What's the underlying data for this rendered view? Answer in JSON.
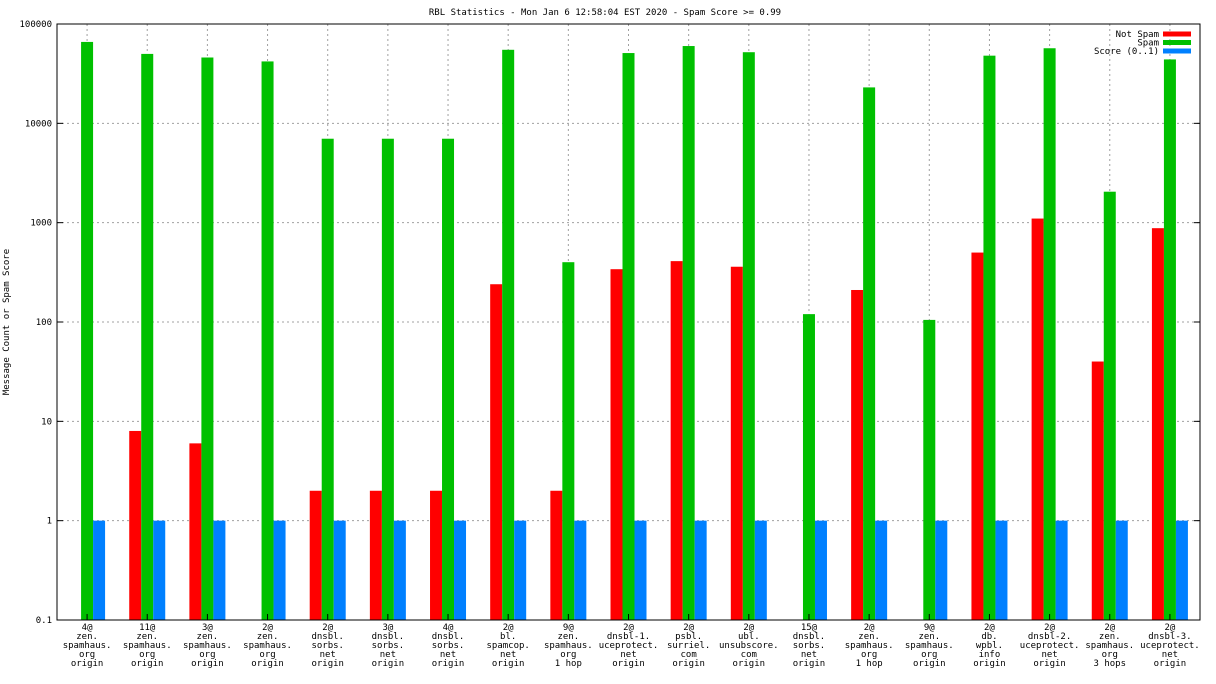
{
  "chart_data": {
    "type": "bar",
    "title": "RBL Statistics - Mon Jan  6 12:58:04 EST 2020 - Spam Score >= 0.99",
    "ylabel": "Message Count or Spam Score",
    "xlabel": "",
    "y_scale": "log",
    "ylim": [
      0.1,
      100000
    ],
    "y_ticks": [
      "0.1",
      "1",
      "10",
      "100",
      "1000",
      "10000",
      "100000"
    ],
    "legend_position": "top-right",
    "grid": true,
    "categories": [
      [
        "4@",
        "zen.",
        "spamhaus.",
        "org",
        "origin"
      ],
      [
        "11@",
        "zen.",
        "spamhaus.",
        "org",
        "origin"
      ],
      [
        "3@",
        "zen.",
        "spamhaus.",
        "org",
        "origin"
      ],
      [
        "2@",
        "zen.",
        "spamhaus.",
        "org",
        "origin"
      ],
      [
        "2@",
        "dnsbl.",
        "sorbs.",
        "net",
        "origin"
      ],
      [
        "3@",
        "dnsbl.",
        "sorbs.",
        "net",
        "origin"
      ],
      [
        "4@",
        "dnsbl.",
        "sorbs.",
        "net",
        "origin"
      ],
      [
        "2@",
        "bl.",
        "spamcop.",
        "net",
        "origin"
      ],
      [
        "9@",
        "zen.",
        "spamhaus.",
        "org",
        "1 hop"
      ],
      [
        "2@",
        "dnsbl-1.",
        "uceprotect.",
        "net",
        "origin"
      ],
      [
        "2@",
        "psbl.",
        "surriel.",
        "com",
        "origin"
      ],
      [
        "2@",
        "ubl.",
        "unsubscore.",
        "com",
        "origin"
      ],
      [
        "15@",
        "dnsbl.",
        "sorbs.",
        "net",
        "origin"
      ],
      [
        "2@",
        "zen.",
        "spamhaus.",
        "org",
        "1 hop"
      ],
      [
        "9@",
        "zen.",
        "spamhaus.",
        "org",
        "origin"
      ],
      [
        "2@",
        "db.",
        "wpbl.",
        "info",
        "origin"
      ],
      [
        "2@",
        "dnsbl-2.",
        "uceprotect.",
        "net",
        "origin"
      ],
      [
        "2@",
        "zen.",
        "spamhaus.",
        "org",
        "3 hops"
      ],
      [
        "2@",
        "dnsbl-3.",
        "uceprotect.",
        "net",
        "origin"
      ]
    ],
    "series": [
      {
        "name": "Not Spam",
        "color": "#ff0000",
        "values": [
          null,
          8,
          6,
          null,
          2,
          2,
          2,
          240,
          2,
          340,
          410,
          360,
          null,
          210,
          null,
          500,
          1100,
          40,
          880
        ]
      },
      {
        "name": "Spam",
        "color": "#00c000",
        "values": [
          66000,
          50000,
          46000,
          42000,
          7000,
          7000,
          7000,
          55000,
          400,
          51000,
          60000,
          52000,
          120,
          23000,
          105,
          48000,
          57000,
          2050,
          44000
        ]
      },
      {
        "name": "Score (0..1)",
        "color": "#0080ff",
        "values": [
          1,
          1,
          1,
          1,
          1,
          1,
          1,
          1,
          1,
          1,
          1,
          1,
          1,
          1,
          1,
          1,
          1,
          1,
          1
        ]
      }
    ]
  }
}
